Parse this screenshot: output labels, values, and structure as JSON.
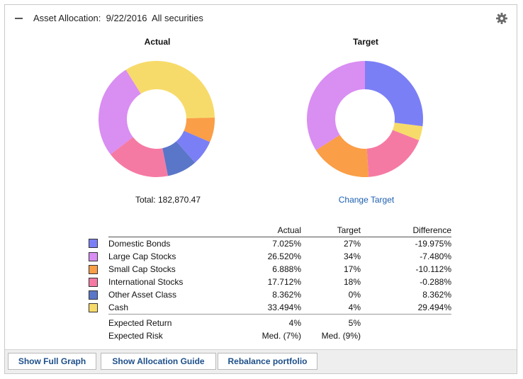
{
  "header": {
    "title": "Asset Allocation:  9/22/2016  All securities",
    "collapse_icon": "minus-icon",
    "settings_icon": "gear-icon"
  },
  "chart_data": [
    {
      "type": "pie",
      "title": "Actual",
      "categories": [
        "Domestic Bonds",
        "Large Cap Stocks",
        "Small Cap Stocks",
        "International Stocks",
        "Other Asset Class",
        "Cash"
      ],
      "values": [
        7.025,
        26.52,
        6.888,
        17.712,
        8.362,
        33.494
      ],
      "order": [
        "Cash",
        "Small Cap Stocks",
        "Domestic Bonds",
        "Other Asset Class",
        "International Stocks",
        "Large Cap Stocks"
      ]
    },
    {
      "type": "pie",
      "title": "Target",
      "categories": [
        "Domestic Bonds",
        "Large Cap Stocks",
        "Small Cap Stocks",
        "International Stocks",
        "Other Asset Class",
        "Cash"
      ],
      "values": [
        27,
        34,
        17,
        18,
        0,
        4
      ],
      "order": [
        "Domestic Bonds",
        "Cash",
        "International Stocks",
        "Small Cap Stocks",
        "Large Cap Stocks"
      ]
    }
  ],
  "colors": {
    "Domestic Bonds": "#7b7ff5",
    "Large Cap Stocks": "#d98ef2",
    "Small Cap Stocks": "#fa9e47",
    "International Stocks": "#f57aa3",
    "Other Asset Class": "#5a76c8",
    "Cash": "#f7db6a"
  },
  "total_text": "Total: 182,870.47",
  "change_target_label": "Change Target",
  "table": {
    "headers": {
      "actual": "Actual",
      "target": "Target",
      "difference": "Difference"
    },
    "rows": [
      {
        "name": "Domestic Bonds",
        "actual": "7.025%",
        "target": "27%",
        "difference": "-19.975%"
      },
      {
        "name": "Large Cap Stocks",
        "actual": "26.520%",
        "target": "34%",
        "difference": "-7.480%"
      },
      {
        "name": "Small Cap Stocks",
        "actual": "6.888%",
        "target": "17%",
        "difference": "-10.112%"
      },
      {
        "name": "International Stocks",
        "actual": "17.712%",
        "target": "18%",
        "difference": "-0.288%"
      },
      {
        "name": "Other Asset Class",
        "actual": "8.362%",
        "target": "0%",
        "difference": "8.362%"
      },
      {
        "name": "Cash",
        "actual": "33.494%",
        "target": "4%",
        "difference": "29.494%"
      }
    ],
    "summary": [
      {
        "name": "Expected Return",
        "actual": "4%",
        "target": "5%"
      },
      {
        "name": "Expected Risk",
        "actual": "Med. (7%)",
        "target": "Med. (9%)"
      }
    ]
  },
  "footer": {
    "buttons": [
      "Show Full Graph",
      "Show Allocation Guide",
      "Rebalance portfolio"
    ]
  }
}
